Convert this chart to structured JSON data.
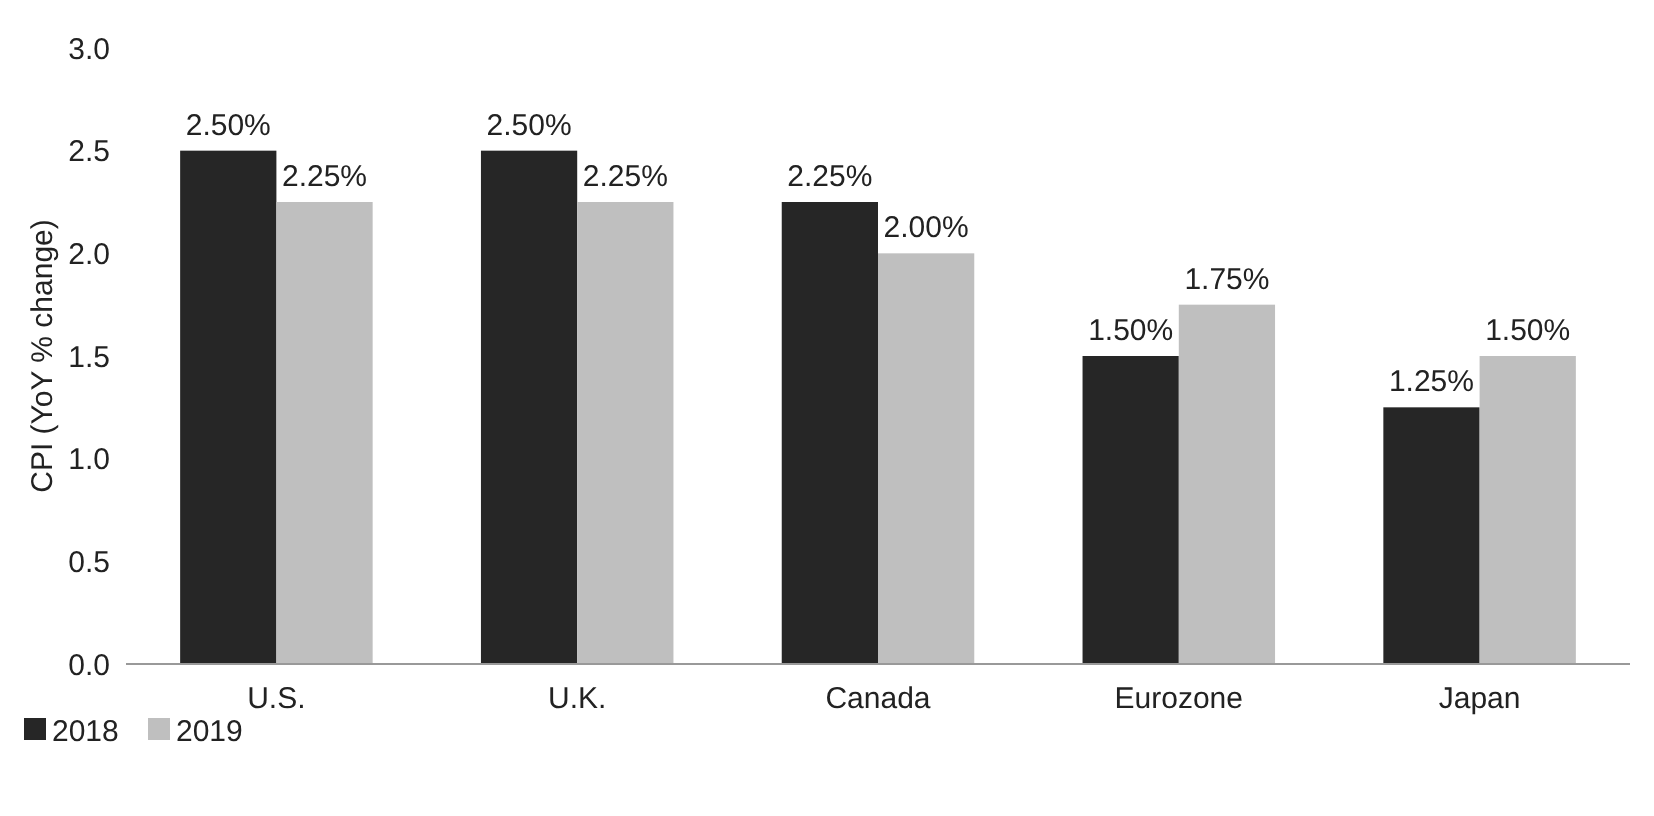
{
  "chart_data": {
    "type": "bar",
    "ylabel": "CPI (YoY % change)",
    "categories": [
      "U.S.",
      "U.K.",
      "Canada",
      "Eurozone",
      "Japan"
    ],
    "series": [
      {
        "name": "2018",
        "color": "#262626",
        "values": [
          2.5,
          2.5,
          2.25,
          1.5,
          1.25
        ],
        "value_labels": [
          "2.50%",
          "2.50%",
          "2.25%",
          "1.50%",
          "1.25%"
        ]
      },
      {
        "name": "2019",
        "color": "#bfbfbf",
        "values": [
          2.25,
          2.25,
          2.0,
          1.75,
          1.5
        ],
        "value_labels": [
          "2.25%",
          "2.25%",
          "2.00%",
          "1.75%",
          "1.50%"
        ]
      }
    ],
    "ylim": [
      0,
      3
    ],
    "yticks": [
      {
        "value": 0,
        "label": "0.0"
      },
      {
        "value": 0.5,
        "label": "0.5"
      },
      {
        "value": 1,
        "label": "1.0"
      },
      {
        "value": 1.5,
        "label": "1.5"
      },
      {
        "value": 2,
        "label": "2.0"
      },
      {
        "value": 2.5,
        "label": "2.5"
      },
      {
        "value": 3,
        "label": "3.0"
      }
    ],
    "grid": false,
    "legend": "bottom left"
  }
}
